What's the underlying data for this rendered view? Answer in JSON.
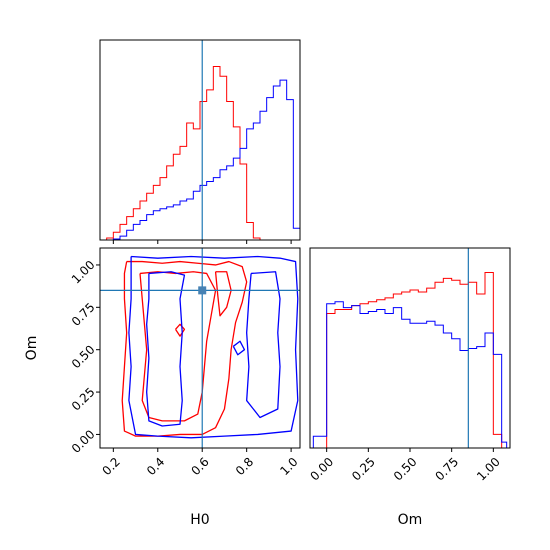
{
  "chart_data": {
    "type": "corner",
    "parameters": [
      "H0",
      "Om"
    ],
    "truths": {
      "H0": 0.6,
      "Om": 0.85
    },
    "colors": {
      "red_run": "#ff0000",
      "blue_run": "#0000ff",
      "truth": "#1f77b4"
    },
    "grid": false,
    "legend": "none",
    "panels": {
      "H0_hist": {
        "type": "step-histogram",
        "xlim": [
          0.14,
          1.04
        ],
        "ymax": 1.0,
        "x_tick_labels_shown": false,
        "xticks": [
          0.2,
          0.4,
          0.6,
          0.8,
          1.0
        ],
        "bins": [
          0.14,
          0.17,
          0.2,
          0.23,
          0.26,
          0.29,
          0.32,
          0.35,
          0.38,
          0.41,
          0.44,
          0.47,
          0.5,
          0.53,
          0.56,
          0.59,
          0.62,
          0.65,
          0.68,
          0.71,
          0.74,
          0.77,
          0.8,
          0.83,
          0.86,
          0.89,
          0.92,
          0.95,
          0.98,
          1.01,
          1.04
        ],
        "series": [
          {
            "color": "#ff0000",
            "values": [
              0,
              0.01,
              0.04,
              0.08,
              0.12,
              0.16,
              0.2,
              0.24,
              0.28,
              0.32,
              0.38,
              0.44,
              0.48,
              0.6,
              0.57,
              0.71,
              0.77,
              0.89,
              0.84,
              0.71,
              0.58,
              0.39,
              0.09,
              0.01,
              0.0,
              0,
              0,
              0,
              0,
              0
            ]
          },
          {
            "color": "#0000ff",
            "values": [
              0,
              0,
              0.005,
              0.02,
              0.05,
              0.08,
              0.1,
              0.13,
              0.15,
              0.16,
              0.17,
              0.18,
              0.2,
              0.21,
              0.25,
              0.28,
              0.3,
              0.32,
              0.36,
              0.38,
              0.42,
              0.47,
              0.57,
              0.6,
              0.66,
              0.73,
              0.79,
              0.82,
              0.72,
              0.06
            ]
          }
        ]
      },
      "Om_hist": {
        "type": "step-histogram",
        "xlim": [
          -0.1,
          1.1
        ],
        "xticks": [
          0.0,
          0.25,
          0.5,
          0.75,
          1.0
        ],
        "xtick_labels": [
          "0.00",
          "0.25",
          "0.50",
          "0.75",
          "1.00"
        ],
        "xlabel": "Om",
        "ymax": 1.0,
        "bins": [
          -0.08,
          0.0,
          0.05,
          0.1,
          0.15,
          0.2,
          0.25,
          0.3,
          0.35,
          0.4,
          0.45,
          0.5,
          0.55,
          0.6,
          0.65,
          0.7,
          0.75,
          0.8,
          0.85,
          0.9,
          0.95,
          1.0,
          1.05,
          1.08
        ],
        "series": [
          {
            "color": "#ff0000",
            "values": [
              0,
              0.69,
              0.71,
              0.71,
              0.73,
              0.74,
              0.75,
              0.76,
              0.77,
              0.79,
              0.8,
              0.81,
              0.8,
              0.82,
              0.85,
              0.87,
              0.86,
              0.84,
              0.85,
              0.79,
              0.9,
              0.07,
              0.0
            ]
          },
          {
            "color": "#0000ff",
            "values": [
              0.06,
              0.74,
              0.75,
              0.72,
              0.73,
              0.69,
              0.7,
              0.71,
              0.69,
              0.72,
              0.66,
              0.64,
              0.64,
              0.65,
              0.63,
              0.59,
              0.56,
              0.5,
              0.51,
              0.52,
              0.59,
              0.48,
              0.03
            ]
          }
        ]
      },
      "H0_vs_Om": {
        "type": "contour",
        "xlim": [
          0.14,
          1.04
        ],
        "ylim": [
          -0.08,
          1.1
        ],
        "xticks": [
          0.2,
          0.4,
          0.6,
          0.8,
          1.0
        ],
        "xtick_labels": [
          "0.2",
          "0.4",
          "0.6",
          "0.8",
          "1.0"
        ],
        "yticks": [
          0.0,
          0.25,
          0.5,
          0.75,
          1.0
        ],
        "ytick_labels": [
          "0.00",
          "0.25",
          "0.50",
          "0.75",
          "1.00"
        ],
        "xlabel": "H0",
        "ylabel": "Om",
        "series": [
          {
            "color": "#ff0000",
            "contours": [
              [
                [
                  0.26,
                  1.02
                ],
                [
                  0.33,
                  1.02
                ],
                [
                  0.42,
                  1.01
                ],
                [
                  0.5,
                  1.02
                ],
                [
                  0.58,
                  1.01
                ],
                [
                  0.66,
                  1.0
                ],
                [
                  0.72,
                  1.02
                ],
                [
                  0.78,
                  0.99
                ],
                [
                  0.8,
                  0.9
                ],
                [
                  0.78,
                  0.78
                ],
                [
                  0.75,
                  0.66
                ],
                [
                  0.73,
                  0.5
                ],
                [
                  0.72,
                  0.33
                ],
                [
                  0.7,
                  0.15
                ],
                [
                  0.66,
                  0.04
                ],
                [
                  0.6,
                  0.0
                ],
                [
                  0.5,
                  0.0
                ],
                [
                  0.4,
                  -0.01
                ],
                [
                  0.3,
                  -0.01
                ],
                [
                  0.25,
                  0.02
                ],
                [
                  0.24,
                  0.2
                ],
                [
                  0.25,
                  0.4
                ],
                [
                  0.26,
                  0.6
                ],
                [
                  0.25,
                  0.8
                ],
                [
                  0.25,
                  0.95
                ],
                [
                  0.26,
                  1.02
                ]
              ],
              [
                [
                  0.32,
                  0.95
                ],
                [
                  0.4,
                  0.96
                ],
                [
                  0.48,
                  0.95
                ],
                [
                  0.56,
                  0.96
                ],
                [
                  0.62,
                  0.95
                ],
                [
                  0.66,
                  0.85
                ],
                [
                  0.64,
                  0.7
                ],
                [
                  0.62,
                  0.55
                ],
                [
                  0.61,
                  0.4
                ],
                [
                  0.6,
                  0.25
                ],
                [
                  0.58,
                  0.12
                ],
                [
                  0.52,
                  0.08
                ],
                [
                  0.42,
                  0.08
                ],
                [
                  0.36,
                  0.1
                ],
                [
                  0.33,
                  0.2
                ],
                [
                  0.34,
                  0.35
                ],
                [
                  0.35,
                  0.5
                ],
                [
                  0.34,
                  0.65
                ],
                [
                  0.33,
                  0.8
                ],
                [
                  0.32,
                  0.95
                ]
              ],
              [
                [
                  0.66,
                  0.96
                ],
                [
                  0.71,
                  0.96
                ],
                [
                  0.73,
                  0.85
                ],
                [
                  0.71,
                  0.75
                ],
                [
                  0.68,
                  0.7
                ],
                [
                  0.67,
                  0.82
                ],
                [
                  0.66,
                  0.96
                ]
              ],
              [
                [
                  0.48,
                  0.62
                ],
                [
                  0.5,
                  0.65
                ],
                [
                  0.52,
                  0.62
                ],
                [
                  0.5,
                  0.58
                ],
                [
                  0.48,
                  0.62
                ]
              ]
            ]
          },
          {
            "color": "#0000ff",
            "contours": [
              [
                [
                  0.28,
                  1.05
                ],
                [
                  0.4,
                  1.04
                ],
                [
                  0.55,
                  1.05
                ],
                [
                  0.7,
                  1.04
                ],
                [
                  0.85,
                  1.05
                ],
                [
                  0.95,
                  1.04
                ],
                [
                  1.02,
                  1.02
                ],
                [
                  1.03,
                  0.8
                ],
                [
                  1.02,
                  0.5
                ],
                [
                  1.03,
                  0.2
                ],
                [
                  1.0,
                  0.02
                ],
                [
                  0.85,
                  0.0
                ],
                [
                  0.7,
                  -0.01
                ],
                [
                  0.55,
                  -0.02
                ],
                [
                  0.4,
                  -0.01
                ],
                [
                  0.3,
                  0.0
                ],
                [
                  0.27,
                  0.2
                ],
                [
                  0.28,
                  0.4
                ],
                [
                  0.27,
                  0.6
                ],
                [
                  0.28,
                  0.8
                ],
                [
                  0.28,
                  1.05
                ]
              ],
              [
                [
                  0.36,
                  0.95
                ],
                [
                  0.46,
                  0.96
                ],
                [
                  0.52,
                  0.94
                ],
                [
                  0.5,
                  0.8
                ],
                [
                  0.51,
                  0.6
                ],
                [
                  0.5,
                  0.4
                ],
                [
                  0.51,
                  0.2
                ],
                [
                  0.5,
                  0.06
                ],
                [
                  0.42,
                  0.05
                ],
                [
                  0.36,
                  0.08
                ],
                [
                  0.35,
                  0.25
                ],
                [
                  0.36,
                  0.45
                ],
                [
                  0.35,
                  0.65
                ],
                [
                  0.36,
                  0.8
                ],
                [
                  0.36,
                  0.95
                ]
              ],
              [
                [
                  0.82,
                  0.95
                ],
                [
                  0.93,
                  0.96
                ],
                [
                  0.95,
                  0.8
                ],
                [
                  0.94,
                  0.6
                ],
                [
                  0.95,
                  0.4
                ],
                [
                  0.94,
                  0.15
                ],
                [
                  0.86,
                  0.1
                ],
                [
                  0.8,
                  0.2
                ],
                [
                  0.81,
                  0.4
                ],
                [
                  0.8,
                  0.6
                ],
                [
                  0.81,
                  0.8
                ],
                [
                  0.82,
                  0.95
                ]
              ],
              [
                [
                  0.74,
                  0.52
                ],
                [
                  0.77,
                  0.55
                ],
                [
                  0.79,
                  0.5
                ],
                [
                  0.76,
                  0.47
                ],
                [
                  0.74,
                  0.52
                ]
              ]
            ]
          }
        ]
      }
    }
  }
}
